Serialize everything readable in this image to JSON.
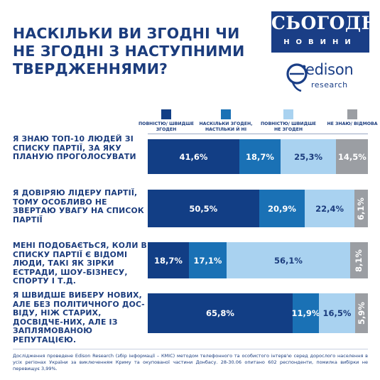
{
  "title": "НАСКІЛЬКИ ВИ ЗГОДНІ ЧИ НЕ ЗГОДНІ З НАСТУПНИМИ ТВЕРДЖЕННЯМИ?",
  "logo": {
    "top": "СЬОГОДНІ",
    "bottom": "НОВИНИ"
  },
  "source_logo": {
    "word": "edison",
    "sub": "research"
  },
  "colors": {
    "strong_agree": "#123e85",
    "somewhat_agree": "#1a71b5",
    "disagree": "#a9d2f0",
    "dont_know": "#9b9ea3"
  },
  "chart_data": {
    "type": "bar",
    "orientation": "horizontal",
    "stacked": true,
    "categories": [
      "Я ЗНАЮ ТОП-10 ЛЮДЕЙ ЗІ СПИСКУ ПАРТІЇ, ЗА ЯКУ ПЛАНУЮ ПРОГОЛОСУВАТИ",
      "Я ДОВІРЯЮ ЛІДЕРУ ПАРТІЇ, ТОМУ ОСОБЛИВО НЕ ЗВЕРТАЮ УВАГУ НА СПИСОК ПАРТІЇ",
      "МЕНІ ПОДОБАЄТЬСЯ, КОЛИ В СПИСКУ ПАРТІЇ Є ВІДОМІ ЛЮДИ, ТАКІ ЯК ЗІРКИ ЕСТРАДИ, ШОУ-БІЗНЕСУ, СПОРТУ І Т.Д.",
      "Я ШВИДШЕ ВИБЕРУ НОВИХ, АЛЕ БЕЗ ПОЛІТИЧНОГО ДОС-ВІДУ, НІЖ СТАРИХ, ДОСВІДЧЕ-НИХ, АЛЕ ІЗ ЗАПЛЯМОВАНОЮ РЕПУТАЦІЄЮ."
    ],
    "series": [
      {
        "name": "ПОВНІСТЮ/ ШВИДШЕ ЗГОДЕН",
        "values": [
          41.6,
          50.5,
          18.7,
          65.8
        ],
        "labels": [
          "41,6%",
          "50,5%",
          "18,7%",
          "65,8%"
        ]
      },
      {
        "name": "НАСКІЛЬКИ ЗГОДЕН, НАСТІЛЬКИ Й НІ",
        "values": [
          18.7,
          20.9,
          17.1,
          11.9
        ],
        "labels": [
          "18,7%",
          "20,9%",
          "17,1%",
          "11,9%"
        ]
      },
      {
        "name": "ПОВНІСТЮ/ ШВИДШЕ НЕ ЗГОДЕН",
        "values": [
          25.3,
          22.4,
          56.1,
          16.5
        ],
        "labels": [
          "25,3%",
          "22,4%",
          "56,1%",
          "16,5%"
        ]
      },
      {
        "name": "НЕ ЗНАЮ/ ВІДМОВА",
        "values": [
          14.5,
          6.1,
          8.1,
          5.9
        ],
        "labels": [
          "14,5%",
          "6,1%",
          "8,1%",
          "5,9%"
        ]
      }
    ],
    "xlim": [
      0,
      100
    ],
    "legend": "top"
  },
  "footnote": "Дослідження проведене Edison Research (збір інформації – КМІС) методом телефонного та особистого інтерв'ю серед дорослого населення в усіх регіонах України за виключенням Криму та окупованої частини Донбасу. 28-30.06 опитано 602 респонденти, помилка вибірки не перевищує 3,99%."
}
